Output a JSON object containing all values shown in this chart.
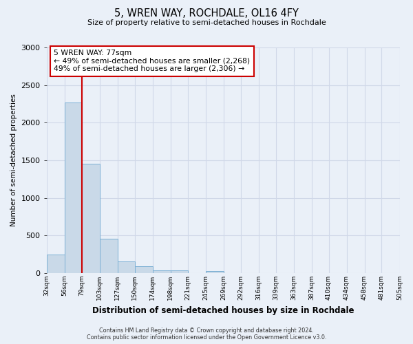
{
  "title": "5, WREN WAY, ROCHDALE, OL16 4FY",
  "subtitle": "Size of property relative to semi-detached houses in Rochdale",
  "xlabel": "Distribution of semi-detached houses by size in Rochdale",
  "ylabel": "Number of semi-detached properties",
  "bar_left_edges": [
    32,
    56,
    79,
    103,
    127,
    150,
    174,
    198,
    221,
    245,
    269,
    292,
    316,
    339,
    363,
    387,
    410,
    434,
    458,
    481
  ],
  "bar_widths": [
    24,
    23,
    24,
    24,
    23,
    24,
    24,
    23,
    24,
    24,
    23,
    24,
    23,
    24,
    24,
    23,
    24,
    24,
    23,
    24
  ],
  "bar_heights": [
    245,
    2270,
    1455,
    455,
    155,
    90,
    40,
    35,
    0,
    25,
    0,
    0,
    0,
    0,
    0,
    0,
    0,
    0,
    0,
    0
  ],
  "bar_color": "#c9d9e8",
  "bar_edgecolor": "#7bafd4",
  "tick_labels": [
    "32sqm",
    "56sqm",
    "79sqm",
    "103sqm",
    "127sqm",
    "150sqm",
    "174sqm",
    "198sqm",
    "221sqm",
    "245sqm",
    "269sqm",
    "292sqm",
    "316sqm",
    "339sqm",
    "363sqm",
    "387sqm",
    "410sqm",
    "434sqm",
    "458sqm",
    "481sqm",
    "505sqm"
  ],
  "ylim": [
    0,
    3000
  ],
  "yticks": [
    0,
    500,
    1000,
    1500,
    2000,
    2500,
    3000
  ],
  "xlim_left": 32,
  "xlim_right": 505,
  "property_x": 79,
  "property_label": "5 WREN WAY: 77sqm",
  "annotation_line1": "← 49% of semi-detached houses are smaller (2,268)",
  "annotation_line2": "49% of semi-detached houses are larger (2,306) →",
  "annotation_box_color": "#ffffff",
  "annotation_box_edgecolor": "#cc0000",
  "redline_color": "#cc0000",
  "grid_color": "#d0d8e8",
  "plot_bg_color": "#eaf0f8",
  "figure_bg_color": "#eaf0f8",
  "footer_line1": "Contains HM Land Registry data © Crown copyright and database right 2024.",
  "footer_line2": "Contains public sector information licensed under the Open Government Licence v3.0."
}
